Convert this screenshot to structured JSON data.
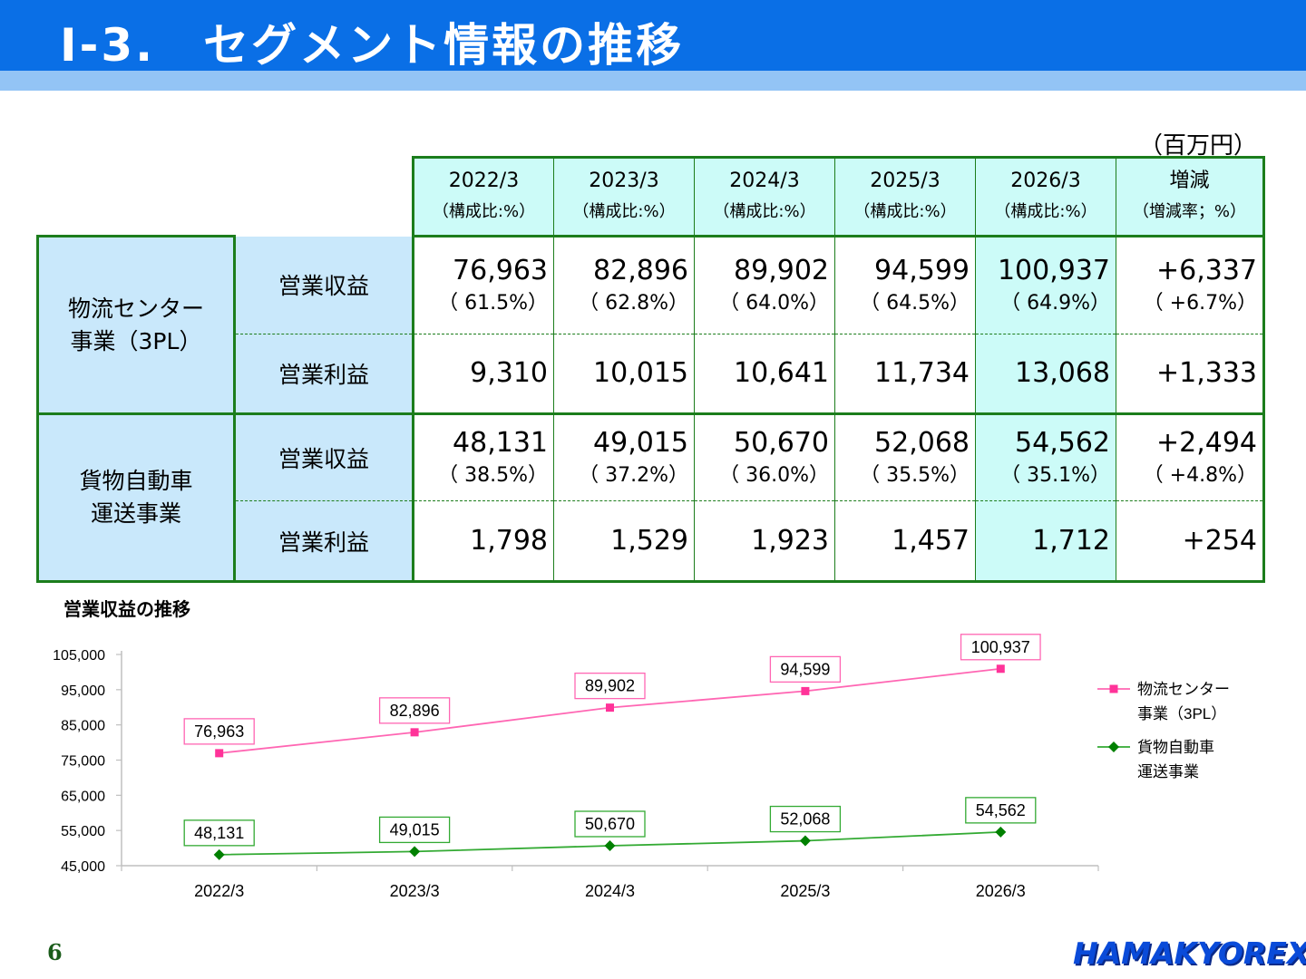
{
  "page": {
    "title": "Ⅰ-3.　セグメント情報の推移",
    "unit": "（百万円）",
    "page_number": "6",
    "logo_text": "HAMAKYOREX"
  },
  "table": {
    "columns": [
      {
        "label": "2022/3",
        "sub": "（構成比:%）"
      },
      {
        "label": "2023/3",
        "sub": "（構成比:%）"
      },
      {
        "label": "2024/3",
        "sub": "（構成比:%）"
      },
      {
        "label": "2025/3",
        "sub": "（構成比:%）"
      },
      {
        "label": "2026/3",
        "sub": "（構成比:%）"
      },
      {
        "label": "増減",
        "sub": "（増減率；%）"
      }
    ],
    "segments": [
      {
        "name_line1": "物流センター",
        "name_line2": "事業（3PL）",
        "revenue_label": "営業収益",
        "profit_label": "営業利益",
        "revenue": [
          "76,963",
          "82,896",
          "89,902",
          "94,599",
          "100,937",
          "+6,337"
        ],
        "revenue_pct": [
          "（ 61.5%）",
          "（ 62.8%）",
          "（ 64.0%）",
          "（ 64.5%）",
          "（ 64.9%）",
          "（ +6.7%）"
        ],
        "profit": [
          "9,310",
          "10,015",
          "10,641",
          "11,734",
          "13,068",
          "+1,333"
        ]
      },
      {
        "name_line1": "貨物自動車",
        "name_line2": "運送事業",
        "revenue_label": "営業収益",
        "profit_label": "営業利益",
        "revenue": [
          "48,131",
          "49,015",
          "50,670",
          "52,068",
          "54,562",
          "+2,494"
        ],
        "revenue_pct": [
          "（ 38.5%）",
          "（ 37.2%）",
          "（ 36.0%）",
          "（ 35.5%）",
          "（ 35.1%）",
          "（ +4.8%）"
        ],
        "profit": [
          "1,798",
          "1,529",
          "1,923",
          "1,457",
          "1,712",
          "+254"
        ]
      }
    ]
  },
  "chart_title": "営業収益の推移",
  "chart_data": {
    "type": "line",
    "title": "営業収益の推移",
    "x": [
      "2022/3",
      "2023/3",
      "2024/3",
      "2025/3",
      "2026/3"
    ],
    "ylim": [
      45000,
      105000
    ],
    "yticks": [
      "45,000",
      "55,000",
      "65,000",
      "75,000",
      "85,000",
      "95,000",
      "105,000"
    ],
    "ytick_values": [
      45000,
      55000,
      65000,
      75000,
      85000,
      95000,
      105000
    ],
    "grid": false,
    "legend": "right",
    "series": [
      {
        "name_line1": "物流センター",
        "name_line2": "事業（3PL）",
        "color": "#ff66b3",
        "marker_color": "#ff3399",
        "marker": "square",
        "values": [
          76963,
          82896,
          89902,
          94599,
          100937
        ],
        "labels": [
          "76,963",
          "82,896",
          "89,902",
          "94,599",
          "100,937"
        ]
      },
      {
        "name_line1": "貨物自動車",
        "name_line2": "運送事業",
        "color": "#33aa33",
        "marker_color": "#008000",
        "marker": "diamond",
        "values": [
          48131,
          49015,
          50670,
          52068,
          54562
        ],
        "labels": [
          "48,131",
          "49,015",
          "50,670",
          "52,068",
          "54,562"
        ]
      }
    ]
  }
}
